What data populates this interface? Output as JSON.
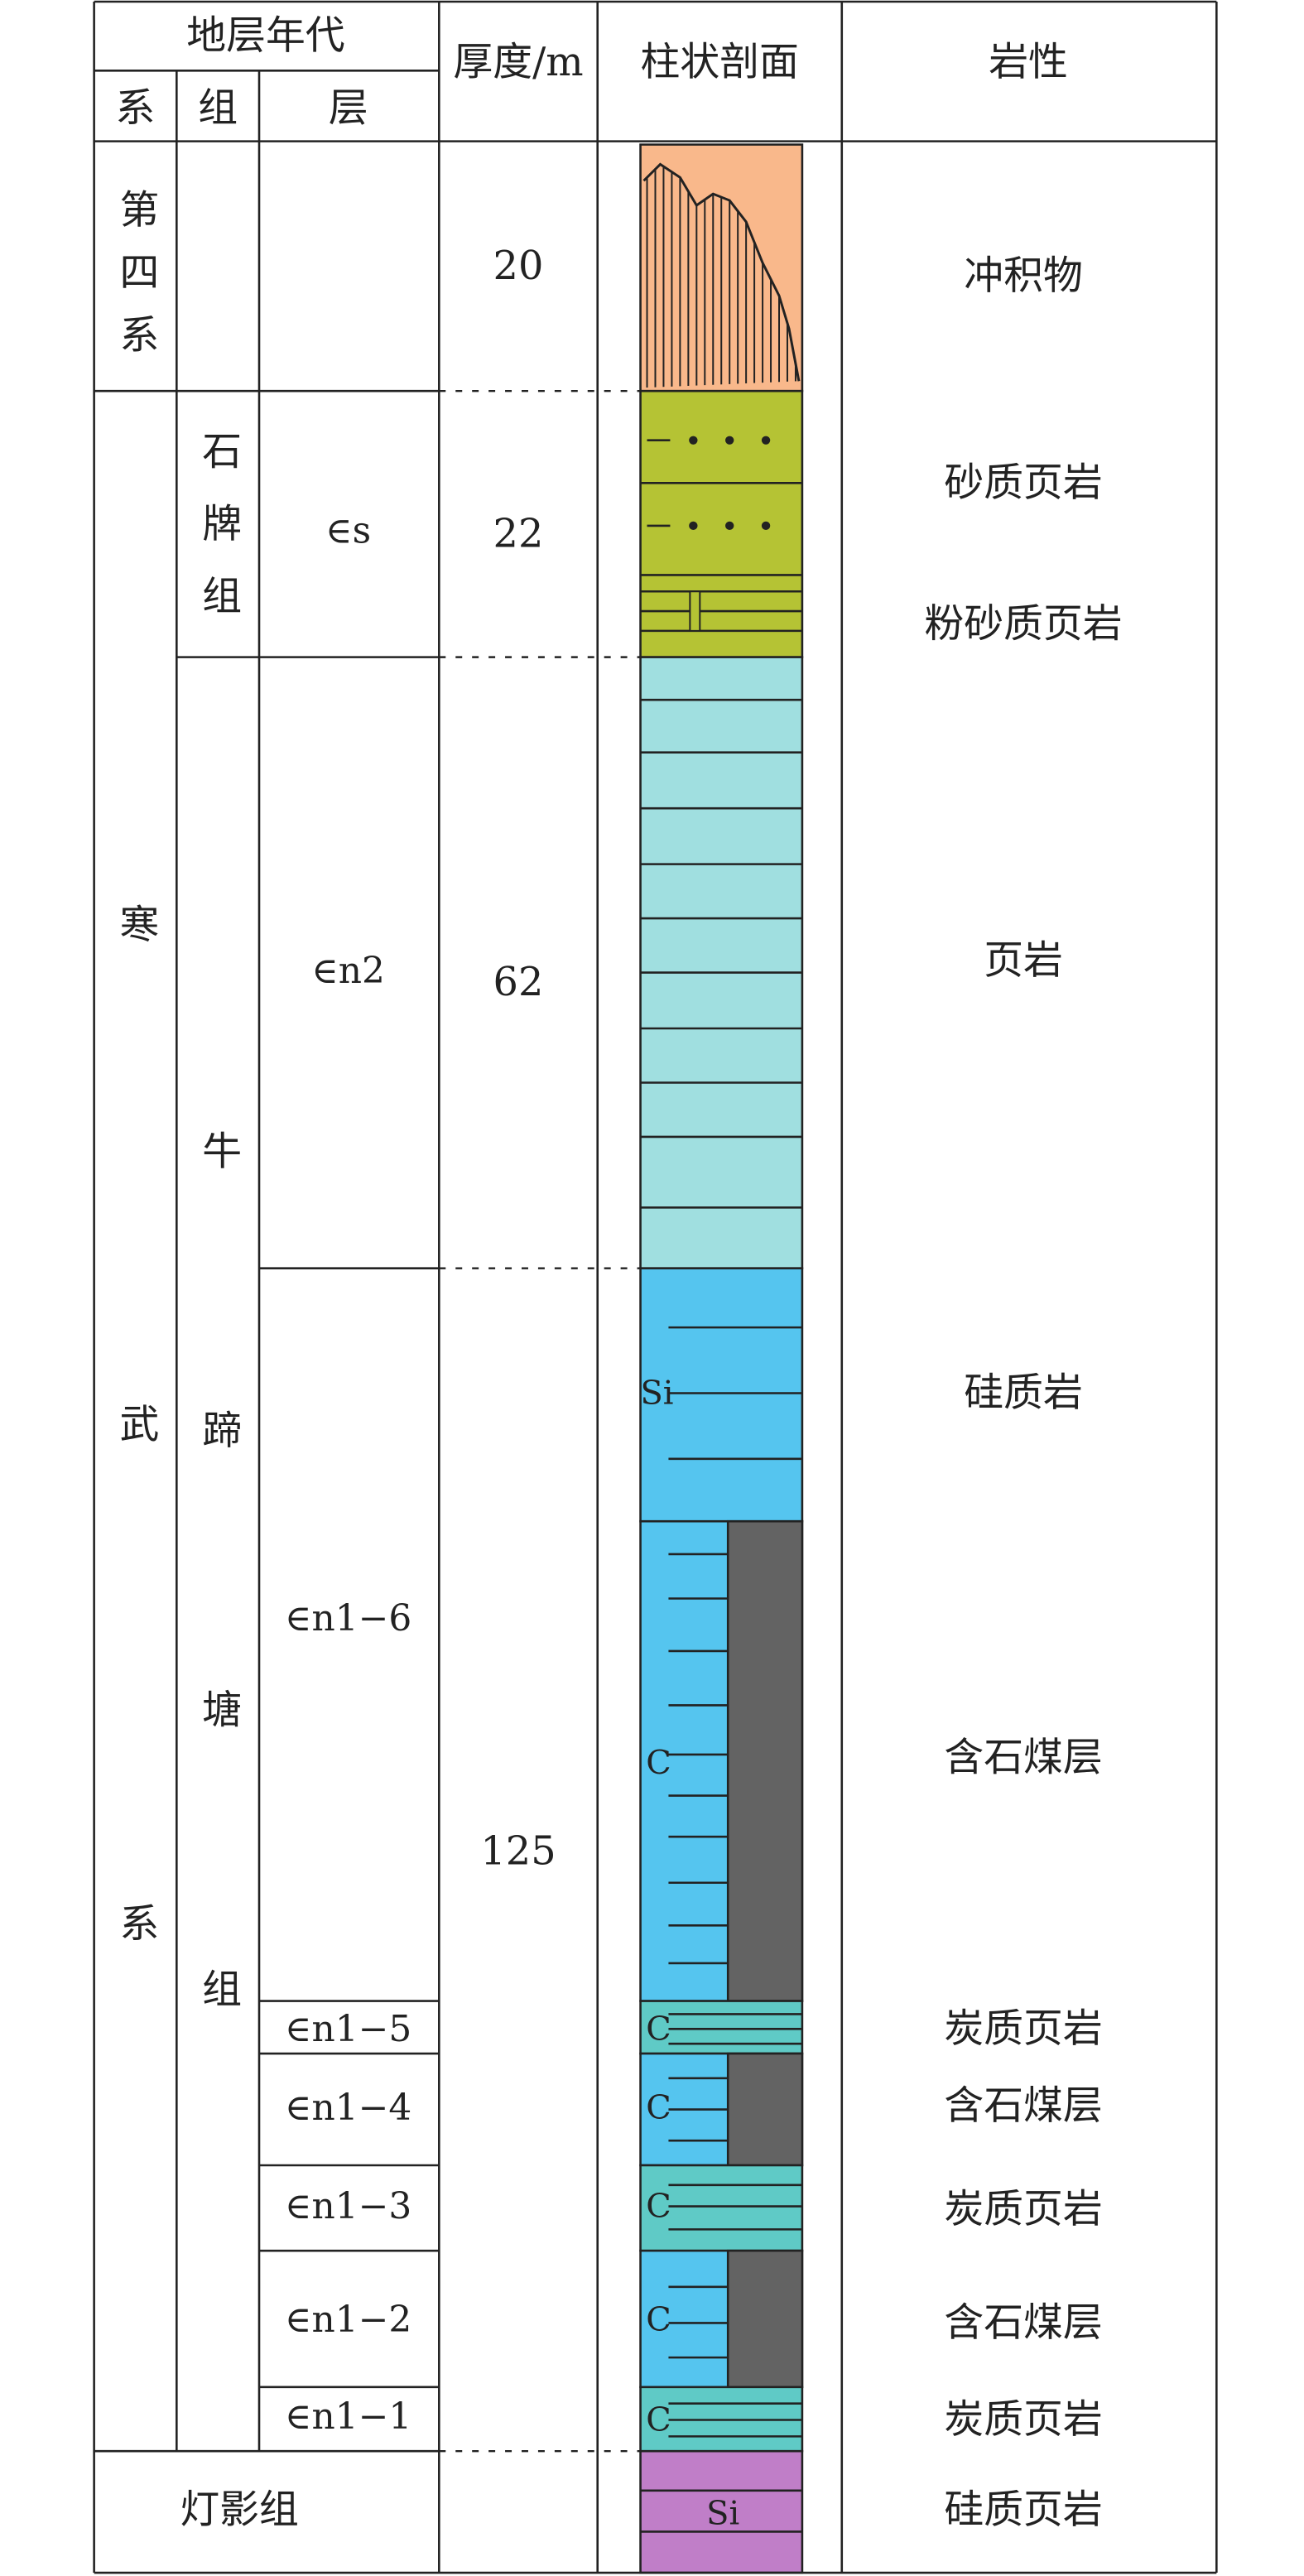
{
  "header": {
    "title": "地层年代",
    "system": "系",
    "group": "组",
    "layer": "层",
    "thickness": "厚度/m",
    "column": "柱状剖面",
    "lithology": "岩性"
  },
  "systems": [
    "第四系",
    "寒武系"
  ],
  "groups": [
    "石牌组",
    "牛蹄塘组",
    "灯影组"
  ],
  "layers": [
    "∈s",
    "∈n2",
    "∈n1−6",
    "∈n1−5",
    "∈n1−4",
    "∈n1−3",
    "∈n1−2",
    "∈n1−1"
  ],
  "thickness": [
    "20",
    "22",
    "62",
    "125"
  ],
  "lithology": [
    "冲积物",
    "砂质页岩",
    "粉砂质页岩",
    "页岩",
    "硅质岩",
    "含石煤层",
    "炭质页岩",
    "含石煤层",
    "炭质页岩",
    "含石煤层",
    "炭质页岩",
    "硅质页岩"
  ],
  "column_symbols": [
    "Si",
    "C",
    "C",
    "C",
    "C",
    "C",
    "C",
    "Si"
  ]
}
